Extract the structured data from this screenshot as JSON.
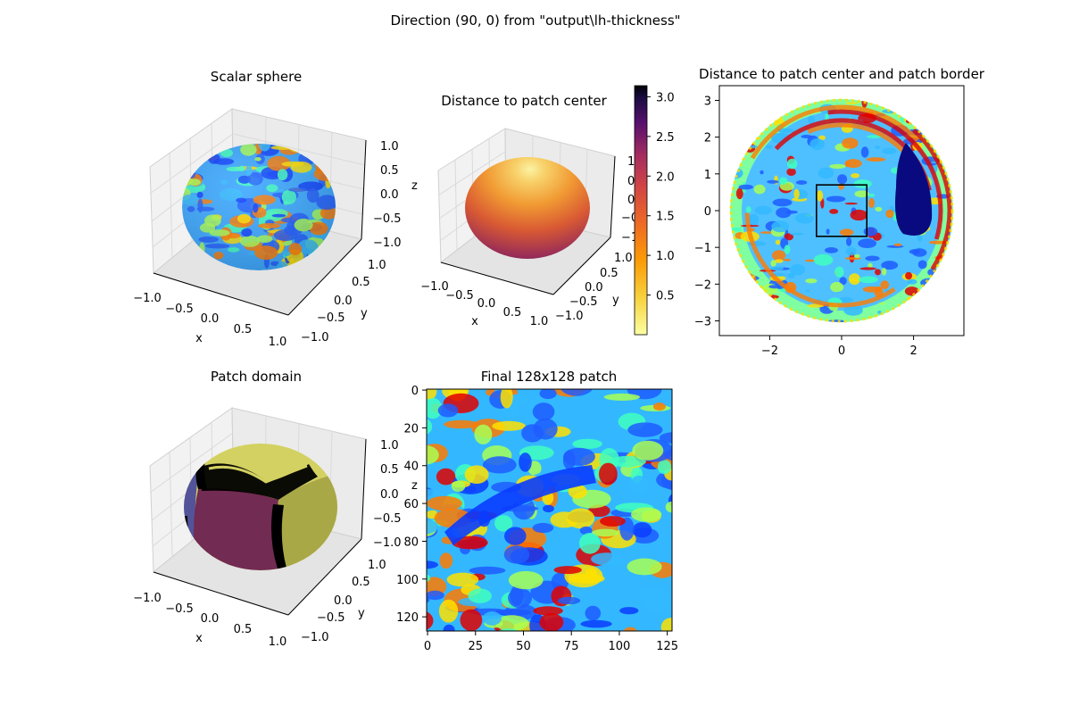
{
  "suptitle": "Direction (90, 0) from \"output\\lh-thickness\"",
  "colors": {
    "axis": "#000000",
    "pane": "#f2f2f2",
    "pane_edge": "#cfcfcf",
    "grid": "#d9d9d9"
  },
  "chart_data": [
    {
      "id": "scalar-sphere",
      "type": "surface3d",
      "title": "Scalar sphere",
      "xlabel": "x",
      "ylabel": "y",
      "zlabel": "",
      "xlim": [
        -1.0,
        1.0
      ],
      "ylim": [
        -1.0,
        1.0
      ],
      "zlim": [
        -1.0,
        1.0
      ],
      "x_ticks": [
        "−1.0",
        "−0.5",
        "0.0",
        "0.5",
        "1.0"
      ],
      "y_ticks": [
        "1.0",
        "0.5",
        "0.0",
        "−0.5",
        "−1.0"
      ],
      "z_ticks": [
        "1.0",
        "0.5",
        "0.0",
        "−0.5",
        "−1.0"
      ],
      "colormap": "jet",
      "grid": true
    },
    {
      "id": "distance-patch-center",
      "type": "surface3d",
      "title": "Distance to patch center",
      "xlabel": "x",
      "ylabel": "y",
      "zlabel": "z",
      "x_ticks": [
        "−1.0",
        "−0.5",
        "0.0",
        "0.5",
        "1.0"
      ],
      "y_ticks": [
        "1.0",
        "0.5",
        "0.0",
        "−0.5",
        "−1.0"
      ],
      "z_ticks": [
        "1",
        "0",
        "0",
        "−0",
        "−1"
      ],
      "colormap": "inferno_r",
      "colorbar": {
        "min": 0.0,
        "max": 3.14,
        "ticks": [
          "0.5",
          "1.0",
          "1.5",
          "2.0",
          "2.5",
          "3.0"
        ],
        "tick_values": [
          0.5,
          1.0,
          1.5,
          2.0,
          2.5,
          3.0
        ]
      },
      "grid": true
    },
    {
      "id": "distance-patch-border",
      "type": "scatter",
      "title": "Distance to patch center and patch border",
      "xlim": [
        -3.4,
        3.4
      ],
      "ylim": [
        -3.4,
        3.4
      ],
      "x_ticks": [
        -2,
        0,
        2
      ],
      "y_ticks": [
        3,
        2,
        1,
        0,
        -1,
        -2,
        -3
      ],
      "x_tick_labels": [
        "−2",
        "0",
        "2"
      ],
      "y_tick_labels": [
        "3",
        "2",
        "1",
        "0",
        "−1",
        "−2",
        "−3"
      ],
      "radius": 3.14,
      "colormap": "jet",
      "patch_box": {
        "x": [
          -0.7,
          0.7
        ],
        "y": [
          -0.7,
          0.7
        ]
      },
      "grid": false
    },
    {
      "id": "patch-domain",
      "type": "surface3d",
      "title": "Patch domain",
      "xlabel": "x",
      "ylabel": "y",
      "zlabel": "z",
      "x_ticks": [
        "−1.0",
        "−0.5",
        "0.0",
        "0.5",
        "1.0"
      ],
      "y_ticks": [
        "1.0",
        "0.5",
        "0.0",
        "−0.5",
        "−1.0"
      ],
      "z_ticks": [
        "1.0",
        "0.5",
        "0.0",
        "−0.5",
        "−1.0"
      ],
      "face_colors": [
        "#d3d161",
        "#722b52",
        "#a9a847",
        "#53539a",
        "#000000"
      ],
      "grid": true
    },
    {
      "id": "final-patch",
      "type": "heatmap",
      "title": "Final 128x128 patch",
      "size": [
        128,
        128
      ],
      "x_ticks": [
        0,
        25,
        50,
        75,
        100,
        125
      ],
      "y_ticks": [
        0,
        20,
        40,
        60,
        80,
        100,
        120
      ],
      "colormap": "jet"
    }
  ]
}
